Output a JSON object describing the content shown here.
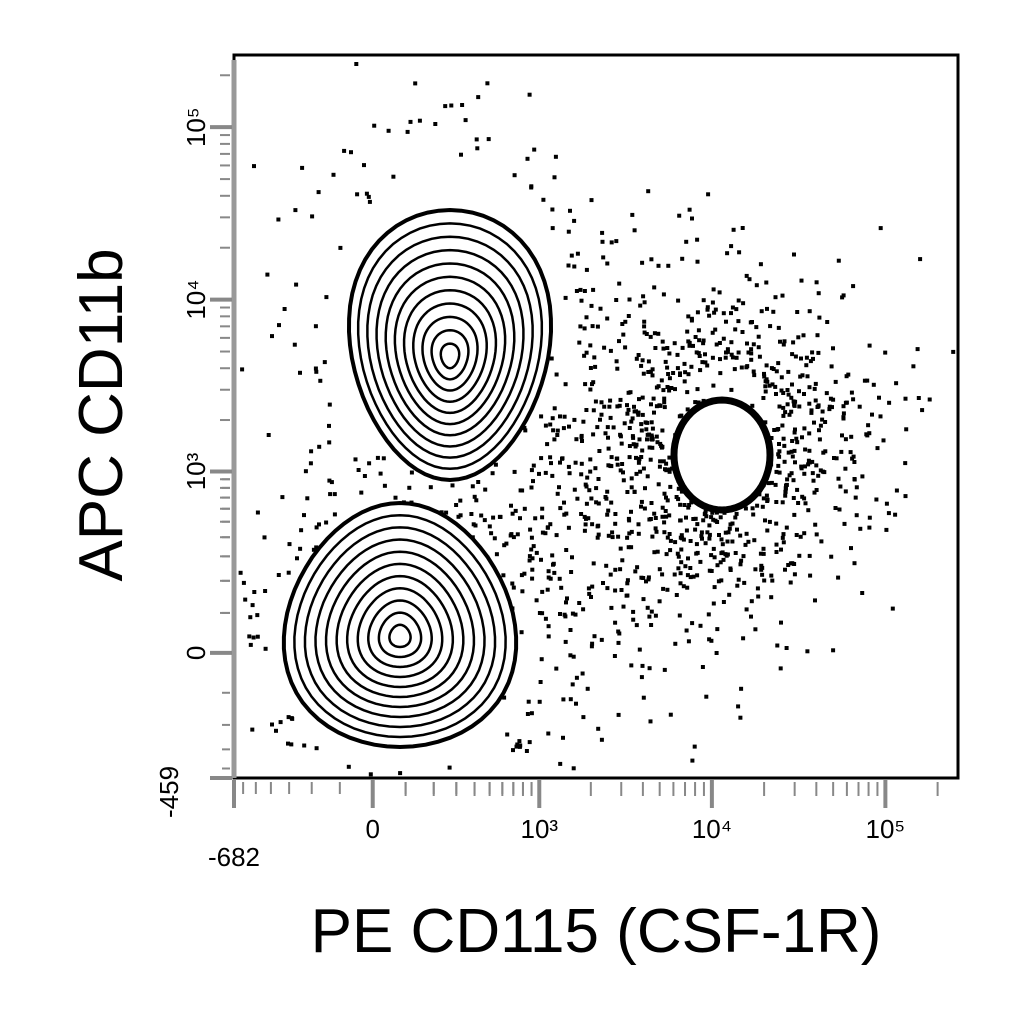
{
  "chart_data": {
    "type": "contour",
    "x_label": "PE CD115 (CSF-1R)",
    "y_label": "APC CD11b",
    "xscale": "biexponential",
    "yscale": "biexponential",
    "xlim": [
      -682,
      262144
    ],
    "ylim": [
      -459,
      262144
    ],
    "xticks": [
      {
        "value": -682,
        "label": "-682"
      },
      0,
      {
        "value": 1000,
        "label": "10³"
      },
      {
        "value": 10000,
        "label": "10⁴"
      },
      {
        "value": 100000,
        "label": "10⁵"
      }
    ],
    "yticks": [
      {
        "value": -459,
        "label": "-459"
      },
      0,
      {
        "value": 1000,
        "label": "10³"
      },
      {
        "value": 10000,
        "label": "10⁴"
      },
      {
        "value": 100000,
        "label": "10⁵"
      }
    ],
    "color": "#000000"
  }
}
